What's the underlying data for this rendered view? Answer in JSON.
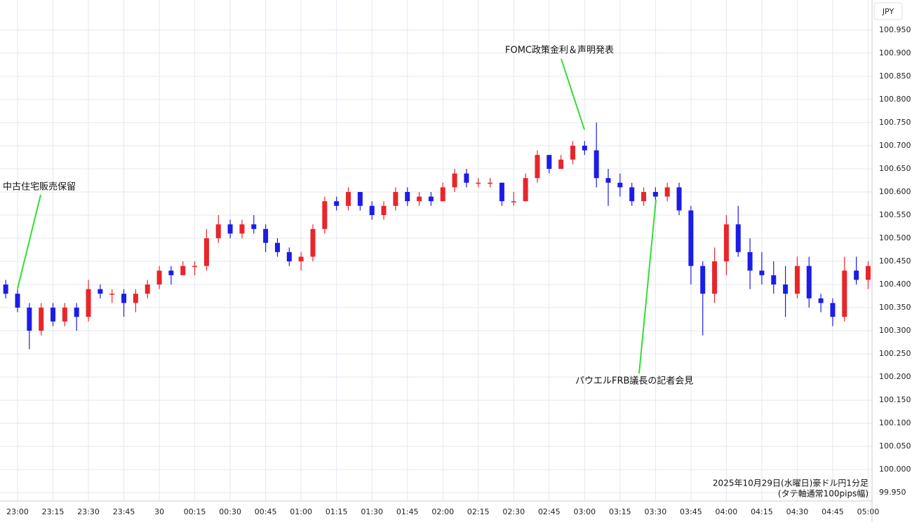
{
  "chart_data": {
    "type": "candlestick",
    "currency_label": "JPY",
    "up_color": "#e8262a",
    "down_color": "#1c1ce8",
    "annotation_color": "#33dd33",
    "grid": true,
    "annotations": [
      {
        "text": "中古住宅販売保留"
      },
      {
        "text": "FOMC政策金利＆声明発表"
      },
      {
        "text": "パウエルFRB議長の記者会見"
      }
    ],
    "note": [
      "2025年10月29日(水曜日)豪ドル円1分足",
      "(タテ軸通常100pips幅)"
    ],
    "categories": [
      "22:55",
      "23:00",
      "23:05",
      "23:10",
      "23:15",
      "23:20",
      "23:25",
      "23:30",
      "23:35",
      "23:40",
      "23:45",
      "23:50",
      "23:55",
      "00:00",
      "00:05",
      "00:10",
      "00:15",
      "00:20",
      "00:25",
      "00:30",
      "00:35",
      "00:40",
      "00:45",
      "00:50",
      "00:55",
      "01:00",
      "01:05",
      "01:10",
      "01:15",
      "01:20",
      "01:25",
      "01:30",
      "01:35",
      "01:40",
      "01:45",
      "01:50",
      "01:55",
      "02:00",
      "02:05",
      "02:10",
      "02:15",
      "02:20",
      "02:25",
      "02:30",
      "02:35",
      "02:40",
      "02:45",
      "02:50",
      "02:55",
      "03:00",
      "03:05",
      "03:10",
      "03:15",
      "03:20",
      "03:25",
      "03:30",
      "03:35",
      "03:40",
      "03:45",
      "03:50",
      "03:55",
      "04:00",
      "04:05",
      "04:10",
      "04:15",
      "04:20",
      "04:25",
      "04:30",
      "04:35",
      "04:40",
      "04:45",
      "04:50",
      "04:55",
      "05:00"
    ],
    "open": [
      100.4,
      100.38,
      100.35,
      100.3,
      100.35,
      100.32,
      100.35,
      100.33,
      100.39,
      100.38,
      100.38,
      100.36,
      100.38,
      100.4,
      100.43,
      100.42,
      100.44,
      100.44,
      100.5,
      100.53,
      100.51,
      100.53,
      100.52,
      100.49,
      100.47,
      100.45,
      100.46,
      100.52,
      100.58,
      100.57,
      100.6,
      100.57,
      100.55,
      100.57,
      100.6,
      100.58,
      100.59,
      100.58,
      100.61,
      100.64,
      100.62,
      100.62,
      100.62,
      100.58,
      100.58,
      100.63,
      100.68,
      100.65,
      100.67,
      100.7,
      100.69,
      100.63,
      100.62,
      100.61,
      100.58,
      100.6,
      100.59,
      100.61,
      100.56,
      100.44,
      100.38,
      100.45,
      100.53,
      100.47,
      100.43,
      100.42,
      100.4,
      100.38,
      100.44,
      100.37,
      100.36,
      100.33,
      100.43,
      100.41
    ],
    "high": [
      100.41,
      100.39,
      100.36,
      100.36,
      100.36,
      100.36,
      100.36,
      100.41,
      100.4,
      100.39,
      100.39,
      100.39,
      100.41,
      100.44,
      100.44,
      100.45,
      100.45,
      100.52,
      100.55,
      100.54,
      100.54,
      100.55,
      100.53,
      100.5,
      100.48,
      100.47,
      100.53,
      100.59,
      100.59,
      100.61,
      100.6,
      100.58,
      100.58,
      100.61,
      100.61,
      100.6,
      100.6,
      100.62,
      100.65,
      100.65,
      100.63,
      100.63,
      100.62,
      100.6,
      100.64,
      100.69,
      100.68,
      100.68,
      100.71,
      100.71,
      100.75,
      100.65,
      100.64,
      100.62,
      100.61,
      100.61,
      100.62,
      100.62,
      100.57,
      100.45,
      100.48,
      100.55,
      100.57,
      100.5,
      100.47,
      100.45,
      100.44,
      100.46,
      100.46,
      100.38,
      100.37,
      100.46,
      100.46,
      100.45
    ],
    "low": [
      100.37,
      100.34,
      100.26,
      100.29,
      100.31,
      100.31,
      100.3,
      100.32,
      100.37,
      100.36,
      100.33,
      100.34,
      100.37,
      100.39,
      100.4,
      100.42,
      100.42,
      100.43,
      100.49,
      100.5,
      100.5,
      100.51,
      100.47,
      100.46,
      100.44,
      100.43,
      100.45,
      100.51,
      100.56,
      100.56,
      100.56,
      100.54,
      100.54,
      100.56,
      100.57,
      100.57,
      100.57,
      100.58,
      100.6,
      100.61,
      100.61,
      100.61,
      100.57,
      100.57,
      100.58,
      100.62,
      100.64,
      100.65,
      100.66,
      100.68,
      100.61,
      100.57,
      100.59,
      100.57,
      100.57,
      100.58,
      100.58,
      100.55,
      100.4,
      100.29,
      100.36,
      100.42,
      100.46,
      100.39,
      100.4,
      100.38,
      100.33,
      100.37,
      100.35,
      100.34,
      100.31,
      100.32,
      100.4,
      100.39
    ],
    "close": [
      100.38,
      100.35,
      100.3,
      100.35,
      100.32,
      100.35,
      100.33,
      100.39,
      100.38,
      100.38,
      100.36,
      100.38,
      100.4,
      100.43,
      100.42,
      100.44,
      100.44,
      100.5,
      100.53,
      100.51,
      100.53,
      100.52,
      100.49,
      100.47,
      100.45,
      100.46,
      100.52,
      100.58,
      100.57,
      100.6,
      100.57,
      100.55,
      100.57,
      100.6,
      100.58,
      100.59,
      100.58,
      100.61,
      100.64,
      100.62,
      100.62,
      100.62,
      100.58,
      100.58,
      100.63,
      100.68,
      100.65,
      100.67,
      100.7,
      100.69,
      100.63,
      100.62,
      100.61,
      100.58,
      100.6,
      100.59,
      100.61,
      100.56,
      100.44,
      100.38,
      100.45,
      100.53,
      100.47,
      100.43,
      100.42,
      100.4,
      100.38,
      100.44,
      100.37,
      100.36,
      100.33,
      100.43,
      100.41,
      100.44
    ],
    "xticks": [
      "23:00",
      "23:15",
      "23:30",
      "23:45",
      {
        "value": "00:00",
        "label": "30"
      },
      "00:15",
      "00:30",
      "00:45",
      "01:00",
      "01:15",
      "01:30",
      "01:45",
      "02:00",
      "02:15",
      "02:30",
      "02:45",
      "03:00",
      "03:15",
      "03:30",
      "03:45",
      "04:00",
      "04:15",
      "04:30",
      "04:45",
      "05:00"
    ],
    "ylim": [
      99.932,
      101.015
    ],
    "yticks": [
      {
        "value": 99.95,
        "label": "99.950"
      },
      {
        "value": 100.0,
        "label": "100.000"
      },
      {
        "value": 100.05,
        "label": "100.050"
      },
      {
        "value": 100.1,
        "label": "100.100"
      },
      {
        "value": 100.15,
        "label": "100.150"
      },
      {
        "value": 100.2,
        "label": "100.200"
      },
      {
        "value": 100.25,
        "label": "100.250"
      },
      {
        "value": 100.3,
        "label": "100.300"
      },
      {
        "value": 100.35,
        "label": "100.350"
      },
      {
        "value": 100.4,
        "label": "100.400"
      },
      {
        "value": 100.45,
        "label": "100.450"
      },
      {
        "value": 100.5,
        "label": "100.500"
      },
      {
        "value": 100.55,
        "label": "100.550"
      },
      {
        "value": 100.6,
        "label": "100.600"
      },
      {
        "value": 100.65,
        "label": "100.650"
      },
      {
        "value": 100.7,
        "label": "100.700"
      },
      {
        "value": 100.75,
        "label": "100.750"
      },
      {
        "value": 100.8,
        "label": "100.800"
      },
      {
        "value": 100.85,
        "label": "100.850"
      },
      {
        "value": 100.9,
        "label": "100.900"
      },
      {
        "value": 100.95,
        "label": "100.950"
      }
    ]
  }
}
